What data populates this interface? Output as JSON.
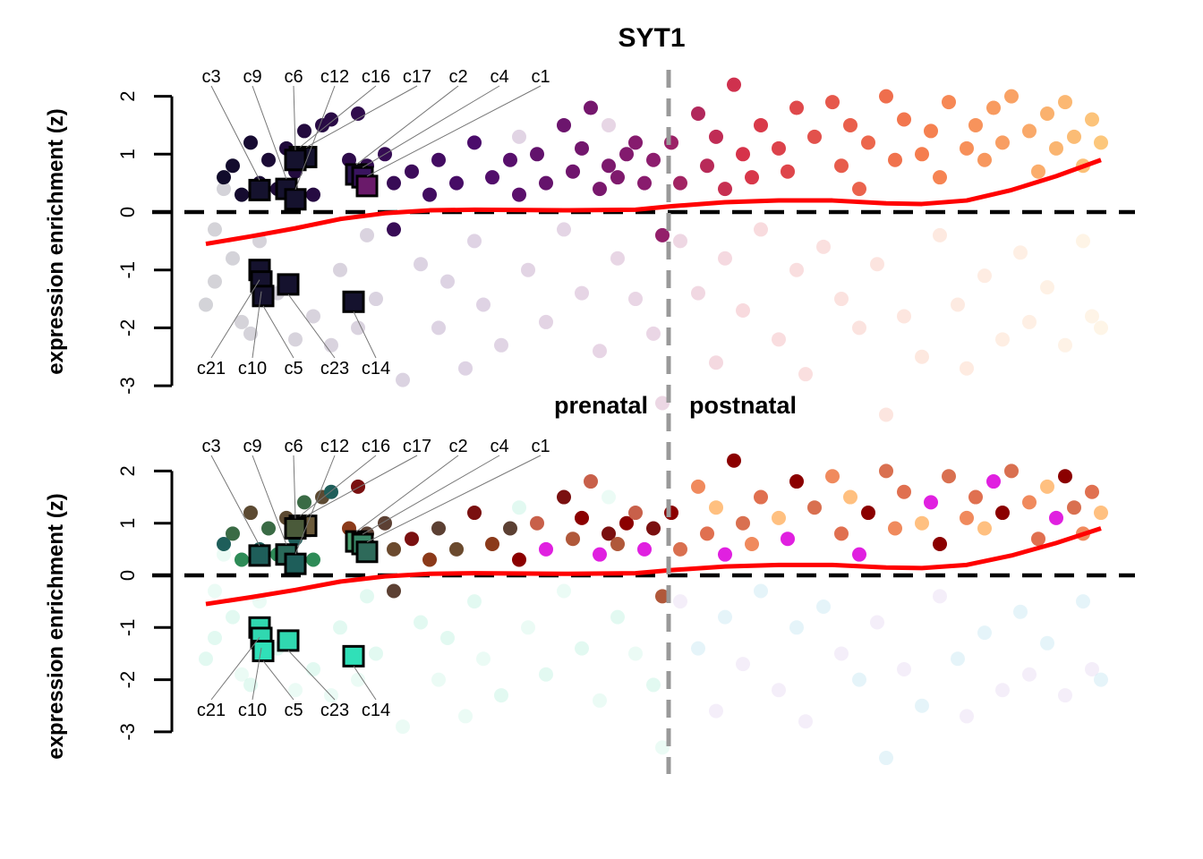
{
  "chart_data": {
    "type": "scatter",
    "title": "SYT1",
    "ylabel": "expression enrichment (z)",
    "ylim": [
      -3,
      2
    ],
    "yticks": [
      "-3",
      "-2",
      "-1",
      "0",
      "1",
      "2"
    ],
    "period_labels": {
      "left": "prenatal",
      "right": "postnatal"
    },
    "reference_line_y": 0,
    "grid": false,
    "legend": "none",
    "colors": {
      "trend": "#ff0000",
      "divider": "#999999",
      "top_gradient": [
        "#0d0b26",
        "#4b0c6b",
        "#8c1d6e",
        "#d6334a",
        "#f57d4e",
        "#fcc77c"
      ],
      "bottom_bright_early": [
        "#1e5e5a",
        "#3a6b45",
        "#2e8b57",
        "#5c4a32"
      ],
      "bottom_bright_mid": [
        "#6b4a2e",
        "#7a1010",
        "#8b3a1a",
        "#5c4033"
      ],
      "bottom_bright_late_prenatal": [
        "#8b0000",
        "#c8604a",
        "#e020e0",
        "#7a1010",
        "#b0583a"
      ],
      "bottom_bright_postnatal": [
        "#f08a5d",
        "#e07050",
        "#ffc080",
        "#e020e0",
        "#8b0000",
        "#d97050"
      ],
      "bottom_faded_prenatal": [
        "#60e0b0",
        "#90e8c8"
      ],
      "bottom_faded_postnatal": [
        "#70c0e0",
        "#c0a0e0"
      ]
    },
    "points": [
      [
        2,
        0.6,
        1
      ],
      [
        3,
        0.8,
        1
      ],
      [
        4,
        0.3,
        1
      ],
      [
        5,
        1.2,
        1
      ],
      [
        6,
        0.5,
        1
      ],
      [
        7,
        0.9,
        1
      ],
      [
        8,
        0.4,
        1
      ],
      [
        9,
        1.1,
        1
      ],
      [
        10,
        0.7,
        1
      ],
      [
        11,
        1.4,
        1
      ],
      [
        12,
        0.3,
        1
      ],
      [
        13,
        1.5,
        1
      ],
      [
        14,
        1.6,
        1
      ],
      [
        17,
        1.7,
        1
      ],
      [
        16,
        0.9,
        1
      ],
      [
        18,
        0.8,
        1
      ],
      [
        0,
        -1.6,
        0
      ],
      [
        1,
        -0.3,
        0
      ],
      [
        1,
        -1.2,
        0
      ],
      [
        2,
        0.4,
        0
      ],
      [
        3,
        -0.8,
        0
      ],
      [
        4,
        -1.9,
        0
      ],
      [
        5,
        -2.1,
        0
      ],
      [
        6,
        -0.5,
        0
      ],
      [
        8,
        -1.4,
        0
      ],
      [
        10,
        -2.2,
        0
      ],
      [
        12,
        -1.8,
        0
      ],
      [
        14,
        -2.3,
        0
      ],
      [
        15,
        -1.0,
        0
      ],
      [
        17,
        -2.0,
        0
      ],
      [
        18,
        -0.4,
        0
      ],
      [
        20,
        1.0,
        1
      ],
      [
        21,
        0.5,
        1
      ],
      [
        23,
        0.7,
        1
      ],
      [
        25,
        0.3,
        1
      ],
      [
        26,
        0.9,
        1
      ],
      [
        28,
        0.5,
        1
      ],
      [
        30,
        1.2,
        1
      ],
      [
        32,
        0.6,
        1
      ],
      [
        34,
        0.9,
        1
      ],
      [
        35,
        0.3,
        1
      ],
      [
        37,
        1.0,
        1
      ],
      [
        38,
        0.5,
        1
      ],
      [
        40,
        1.5,
        1
      ],
      [
        41,
        0.7,
        1
      ],
      [
        42,
        1.1,
        1
      ],
      [
        43,
        1.8,
        1
      ],
      [
        44,
        0.4,
        1
      ],
      [
        45,
        0.8,
        1
      ],
      [
        46,
        0.6,
        1
      ],
      [
        47,
        1.0,
        1
      ],
      [
        48,
        1.2,
        1
      ],
      [
        49,
        0.5,
        1
      ],
      [
        50,
        0.9,
        1
      ],
      [
        51,
        -0.4,
        1
      ],
      [
        21,
        -0.3,
        1
      ],
      [
        19,
        -1.5,
        0
      ],
      [
        22,
        -2.9,
        0
      ],
      [
        24,
        -0.9,
        0
      ],
      [
        26,
        -2.0,
        0
      ],
      [
        27,
        -1.2,
        0
      ],
      [
        29,
        -2.7,
        0
      ],
      [
        30,
        -0.5,
        0
      ],
      [
        31,
        -1.6,
        0
      ],
      [
        33,
        -2.3,
        0
      ],
      [
        36,
        -1.0,
        0
      ],
      [
        38,
        -1.9,
        0
      ],
      [
        40,
        -0.3,
        0
      ],
      [
        42,
        -1.4,
        0
      ],
      [
        44,
        -2.4,
        0
      ],
      [
        46,
        -0.8,
        0
      ],
      [
        48,
        -1.5,
        0
      ],
      [
        50,
        -2.1,
        0
      ],
      [
        51,
        -3.3,
        0
      ],
      [
        35,
        1.3,
        0
      ],
      [
        45,
        1.5,
        0
      ],
      [
        52,
        1.2,
        1
      ],
      [
        53,
        0.5,
        1
      ],
      [
        55,
        1.7,
        1
      ],
      [
        56,
        0.8,
        1
      ],
      [
        57,
        1.3,
        1
      ],
      [
        58,
        0.4,
        1
      ],
      [
        59,
        2.2,
        1
      ],
      [
        60,
        1.0,
        1
      ],
      [
        61,
        0.6,
        1
      ],
      [
        62,
        1.5,
        1
      ],
      [
        64,
        1.1,
        1
      ],
      [
        65,
        0.7,
        1
      ],
      [
        66,
        1.8,
        1
      ],
      [
        68,
        1.3,
        1
      ],
      [
        70,
        1.9,
        1
      ],
      [
        71,
        0.8,
        1
      ],
      [
        72,
        1.5,
        1
      ],
      [
        73,
        0.4,
        1
      ],
      [
        74,
        1.2,
        1
      ],
      [
        76,
        2.0,
        1
      ],
      [
        77,
        0.9,
        1
      ],
      [
        78,
        1.6,
        1
      ],
      [
        80,
        1.0,
        1
      ],
      [
        81,
        1.4,
        1
      ],
      [
        82,
        0.6,
        1
      ],
      [
        83,
        1.9,
        1
      ],
      [
        85,
        1.1,
        1
      ],
      [
        86,
        1.5,
        1
      ],
      [
        87,
        0.9,
        1
      ],
      [
        88,
        1.8,
        1
      ],
      [
        89,
        1.2,
        1
      ],
      [
        90,
        2.0,
        1
      ],
      [
        92,
        1.4,
        1
      ],
      [
        93,
        0.7,
        1
      ],
      [
        94,
        1.7,
        1
      ],
      [
        95,
        1.1,
        1
      ],
      [
        96,
        1.9,
        1
      ],
      [
        97,
        1.3,
        1
      ],
      [
        98,
        0.8,
        1
      ],
      [
        99,
        1.6,
        1
      ],
      [
        100,
        1.2,
        1
      ],
      [
        53,
        -0.5,
        0
      ],
      [
        55,
        -1.4,
        0
      ],
      [
        57,
        -2.6,
        0
      ],
      [
        58,
        -0.8,
        0
      ],
      [
        60,
        -1.7,
        0
      ],
      [
        62,
        -0.3,
        0
      ],
      [
        64,
        -2.2,
        0
      ],
      [
        66,
        -1.0,
        0
      ],
      [
        67,
        -2.8,
        0
      ],
      [
        69,
        -0.6,
        0
      ],
      [
        71,
        -1.5,
        0
      ],
      [
        73,
        -2.0,
        0
      ],
      [
        75,
        -0.9,
        0
      ],
      [
        76,
        -3.5,
        0
      ],
      [
        78,
        -1.8,
        0
      ],
      [
        80,
        -2.5,
        0
      ],
      [
        82,
        -0.4,
        0
      ],
      [
        84,
        -1.6,
        0
      ],
      [
        85,
        -2.7,
        0
      ],
      [
        87,
        -1.1,
        0
      ],
      [
        89,
        -2.2,
        0
      ],
      [
        91,
        -0.7,
        0
      ],
      [
        92,
        -1.9,
        0
      ],
      [
        94,
        -1.3,
        0
      ],
      [
        96,
        -2.3,
        0
      ],
      [
        98,
        -0.5,
        0
      ],
      [
        99,
        -1.8,
        0
      ],
      [
        100,
        -2.0,
        0
      ]
    ],
    "trend": [
      [
        0,
        -0.55
      ],
      [
        5,
        -0.42
      ],
      [
        10,
        -0.28
      ],
      [
        15,
        -0.12
      ],
      [
        20,
        -0.02
      ],
      [
        25,
        0.03
      ],
      [
        30,
        0.04
      ],
      [
        40,
        0.03
      ],
      [
        48,
        0.04
      ],
      [
        52,
        0.1
      ],
      [
        58,
        0.17
      ],
      [
        64,
        0.2
      ],
      [
        70,
        0.2
      ],
      [
        76,
        0.15
      ],
      [
        80,
        0.14
      ],
      [
        85,
        0.2
      ],
      [
        90,
        0.38
      ],
      [
        95,
        0.62
      ],
      [
        100,
        0.9
      ]
    ],
    "divider_x": 51.7,
    "clusters": [
      {
        "label": "c16",
        "x": 10.5,
        "y": 0.95,
        "top_color": "#15122e",
        "bottom_color": "#5a4a2a"
      },
      {
        "label": "c17",
        "x": 11.2,
        "y": 0.95,
        "top_color": "#15122e",
        "bottom_color": "#6b5a3a"
      },
      {
        "label": "c6",
        "x": 10.0,
        "y": 0.9,
        "top_color": "#15122e",
        "bottom_color": "#4a5a3a"
      },
      {
        "label": "c3",
        "x": 6.0,
        "y": 0.38,
        "top_color": "#15122e",
        "bottom_color": "#1e5e5a"
      },
      {
        "label": "c9",
        "x": 9.0,
        "y": 0.4,
        "top_color": "#15122e",
        "bottom_color": "#2a6a5a"
      },
      {
        "label": "c12",
        "x": 10.0,
        "y": 0.22,
        "top_color": "#15122e",
        "bottom_color": "#1e5e5a"
      },
      {
        "label": "c2",
        "x": 16.8,
        "y": 0.65,
        "top_color": "#2a1450",
        "bottom_color": "#4aa070"
      },
      {
        "label": "c4",
        "x": 17.5,
        "y": 0.6,
        "top_color": "#3a1460",
        "bottom_color": "#3a8a6a"
      },
      {
        "label": "c1",
        "x": 18.0,
        "y": 0.45,
        "top_color": "#6a1a6a",
        "bottom_color": "#2e6a5a"
      },
      {
        "label": "c21",
        "x": 6.0,
        "y": -1.0,
        "top_color": "#15122e",
        "bottom_color": "#30d8b0"
      },
      {
        "label": "c10",
        "x": 6.2,
        "y": -1.2,
        "top_color": "#15122e",
        "bottom_color": "#30d8b0"
      },
      {
        "label": "c5",
        "x": 6.4,
        "y": -1.45,
        "top_color": "#15122e",
        "bottom_color": "#30e0b8"
      },
      {
        "label": "c23",
        "x": 9.2,
        "y": -1.25,
        "top_color": "#15122e",
        "bottom_color": "#30d8b0"
      },
      {
        "label": "c14",
        "x": 16.5,
        "y": -1.55,
        "top_color": "#15122e",
        "bottom_color": "#30e0b8"
      }
    ]
  }
}
